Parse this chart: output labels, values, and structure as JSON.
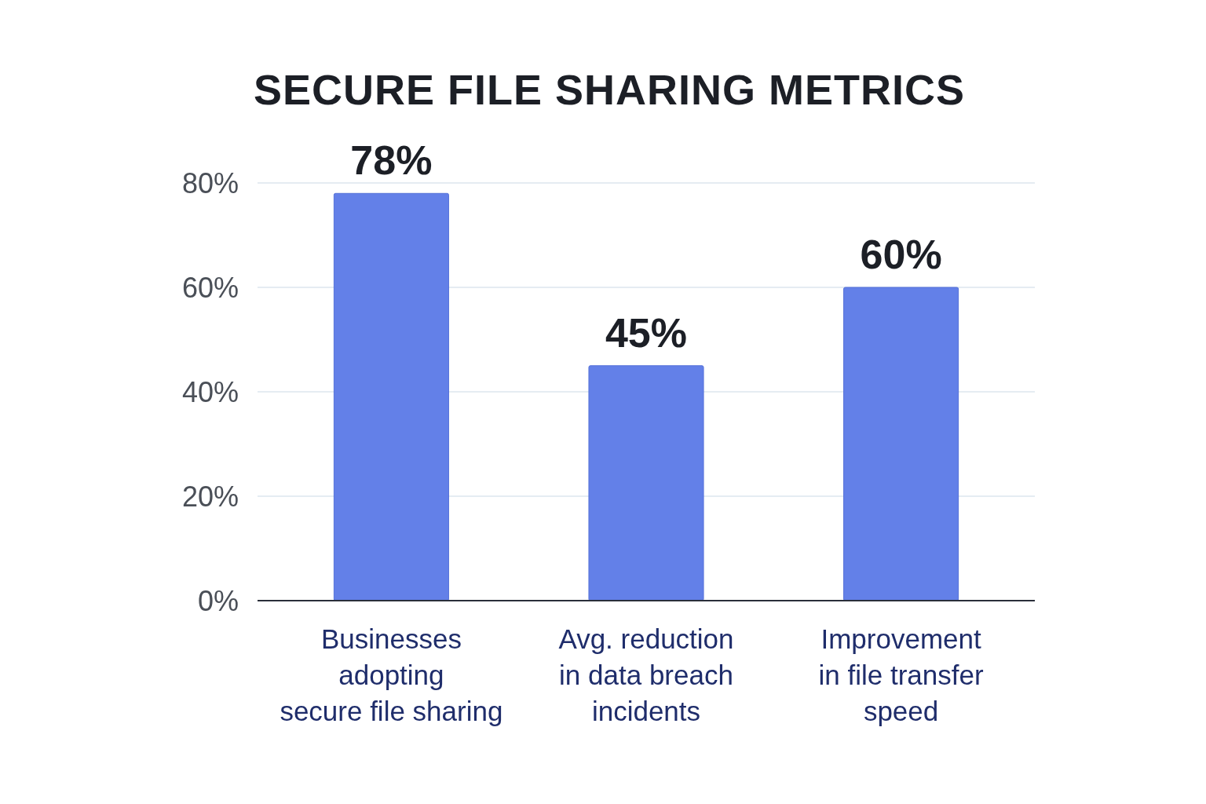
{
  "chart_data": {
    "type": "bar",
    "title": "SECURE FILE SHARING METRICS",
    "categories": [
      "Businesses\nadopting\nsecure file sharing",
      "Avg. reduction\nin data breach\nincidents",
      "Improvement\nin file transfer\nspeed"
    ],
    "values": [
      78,
      45,
      60
    ],
    "value_labels": [
      "78%",
      "45%",
      "60%"
    ],
    "color": "#6380e8",
    "ylim": [
      0,
      80
    ],
    "yticks": [
      {
        "value": 0,
        "label": "0%"
      },
      {
        "value": 20,
        "label": "20%"
      },
      {
        "value": 40,
        "label": "40%"
      },
      {
        "value": 60,
        "label": "60%"
      },
      {
        "value": 80,
        "label": "80%"
      }
    ],
    "grid": "y"
  }
}
